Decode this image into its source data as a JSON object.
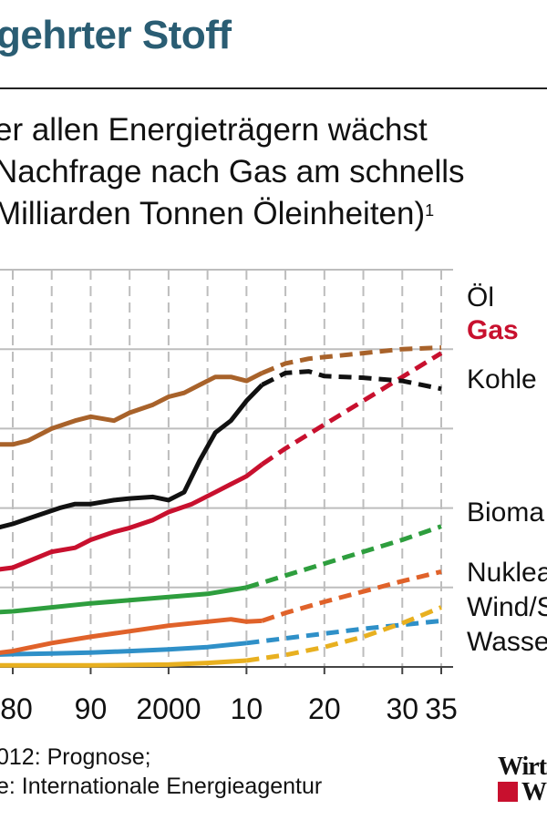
{
  "header": {
    "title": "gehrter Stoff",
    "subtitle_lines": [
      "er allen Energieträgern wächst",
      "Nachfrage nach Gas am schnells",
      "Milliarden Tonnen Öleinheiten)"
    ],
    "subtitle_footnote_mark": "1"
  },
  "footer": {
    "note": "012: Prognose;",
    "source": "e: Internationale Energieagentur"
  },
  "logo": {
    "line1": "Wirts",
    "line2": "W"
  },
  "chart_data": {
    "type": "line",
    "x_tick_labels": [
      "80",
      "90",
      "2000",
      "10",
      "20",
      "30",
      "35"
    ],
    "x_tick_years": [
      1980,
      1990,
      2000,
      2010,
      2020,
      2030,
      2035
    ],
    "xlim": [
      1976,
      2036
    ],
    "ylim": [
      0,
      5
    ],
    "grid": true,
    "legend": "right, inline labels",
    "forecast_from": 2012,
    "series": [
      {
        "name": "Öl",
        "color": "#a8622a",
        "label_style": "normal",
        "x": [
          1976,
          1978,
          1980,
          1982,
          1985,
          1988,
          1990,
          1993,
          1995,
          1998,
          2000,
          2002,
          2004,
          2006,
          2008,
          2010,
          2012,
          2015,
          2018,
          2020,
          2025,
          2030,
          2035
        ],
        "y": [
          2.9,
          2.8,
          2.8,
          2.85,
          3.0,
          3.1,
          3.15,
          3.1,
          3.2,
          3.3,
          3.4,
          3.45,
          3.55,
          3.65,
          3.65,
          3.6,
          3.7,
          3.82,
          3.88,
          3.9,
          3.95,
          4.0,
          4.02
        ]
      },
      {
        "name": "Gas",
        "color": "#c8102e",
        "label_style": "bold",
        "x": [
          1976,
          1980,
          1985,
          1988,
          1990,
          1993,
          1995,
          1998,
          2000,
          2003,
          2006,
          2008,
          2010,
          2012,
          2015,
          2020,
          2025,
          2030,
          2035
        ],
        "y": [
          1.2,
          1.25,
          1.45,
          1.5,
          1.6,
          1.7,
          1.75,
          1.85,
          1.95,
          2.05,
          2.2,
          2.3,
          2.4,
          2.55,
          2.75,
          3.05,
          3.35,
          3.65,
          3.95
        ]
      },
      {
        "name": "Kohle",
        "color": "#111111",
        "label_style": "normal",
        "x": [
          1976,
          1978,
          1980,
          1983,
          1986,
          1988,
          1990,
          1993,
          1995,
          1998,
          2000,
          2002,
          2004,
          2006,
          2008,
          2010,
          2012,
          2015,
          2018,
          2020,
          2025,
          2030,
          2035
        ],
        "y": [
          1.7,
          1.75,
          1.8,
          1.9,
          2.0,
          2.05,
          2.05,
          2.1,
          2.12,
          2.14,
          2.1,
          2.2,
          2.6,
          2.95,
          3.1,
          3.35,
          3.55,
          3.7,
          3.72,
          3.66,
          3.64,
          3.6,
          3.5
        ]
      },
      {
        "name": "Bioma",
        "color": "#2e9e3e",
        "label_style": "normal",
        "x": [
          1976,
          1980,
          1985,
          1990,
          1995,
          2000,
          2005,
          2010,
          2015,
          2020,
          2025,
          2030,
          2035
        ],
        "y": [
          0.68,
          0.7,
          0.75,
          0.8,
          0.84,
          0.88,
          0.92,
          1.0,
          1.15,
          1.3,
          1.45,
          1.6,
          1.77
        ]
      },
      {
        "name": "Nuklea",
        "color": "#e0622a",
        "label_style": "normal",
        "x": [
          1976,
          1980,
          1985,
          1990,
          1995,
          2000,
          2005,
          2008,
          2010,
          2012,
          2015,
          2020,
          2025,
          2030,
          2035
        ],
        "y": [
          0.15,
          0.2,
          0.3,
          0.38,
          0.45,
          0.52,
          0.57,
          0.6,
          0.57,
          0.58,
          0.68,
          0.82,
          0.95,
          1.08,
          1.2
        ]
      },
      {
        "name": "Wind/S",
        "color": "#e8b020",
        "label_style": "normal",
        "x": [
          1976,
          1980,
          1990,
          2000,
          2005,
          2010,
          2015,
          2020,
          2025,
          2030,
          2035
        ],
        "y": [
          0.02,
          0.02,
          0.02,
          0.03,
          0.05,
          0.08,
          0.15,
          0.25,
          0.38,
          0.55,
          0.75
        ]
      },
      {
        "name": "Wasse",
        "color": "#2f90c8",
        "label_style": "normal",
        "x": [
          1976,
          1980,
          1985,
          1990,
          1995,
          2000,
          2005,
          2010,
          2015,
          2020,
          2025,
          2030,
          2035
        ],
        "y": [
          0.15,
          0.16,
          0.17,
          0.18,
          0.2,
          0.22,
          0.25,
          0.3,
          0.36,
          0.42,
          0.48,
          0.53,
          0.58
        ]
      }
    ]
  }
}
